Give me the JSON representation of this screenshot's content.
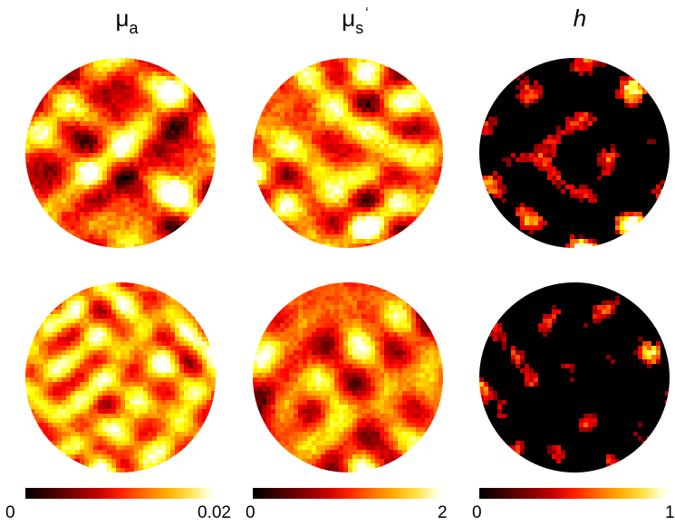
{
  "columns": [
    {
      "symbol": "μ",
      "subscript": "a",
      "prime": "",
      "italic": false
    },
    {
      "symbol": "μ",
      "subscript": "s",
      "prime": "‘",
      "italic": false
    },
    {
      "symbol": "h",
      "subscript": "",
      "prime": "",
      "italic": true
    }
  ],
  "colorbars": [
    {
      "min_label": "0",
      "max_label": "0.02"
    },
    {
      "min_label": "0",
      "max_label": "2"
    },
    {
      "min_label": "0",
      "max_label": "1"
    }
  ],
  "colormap": "hot",
  "colors": {
    "background": "#ffffff"
  }
}
